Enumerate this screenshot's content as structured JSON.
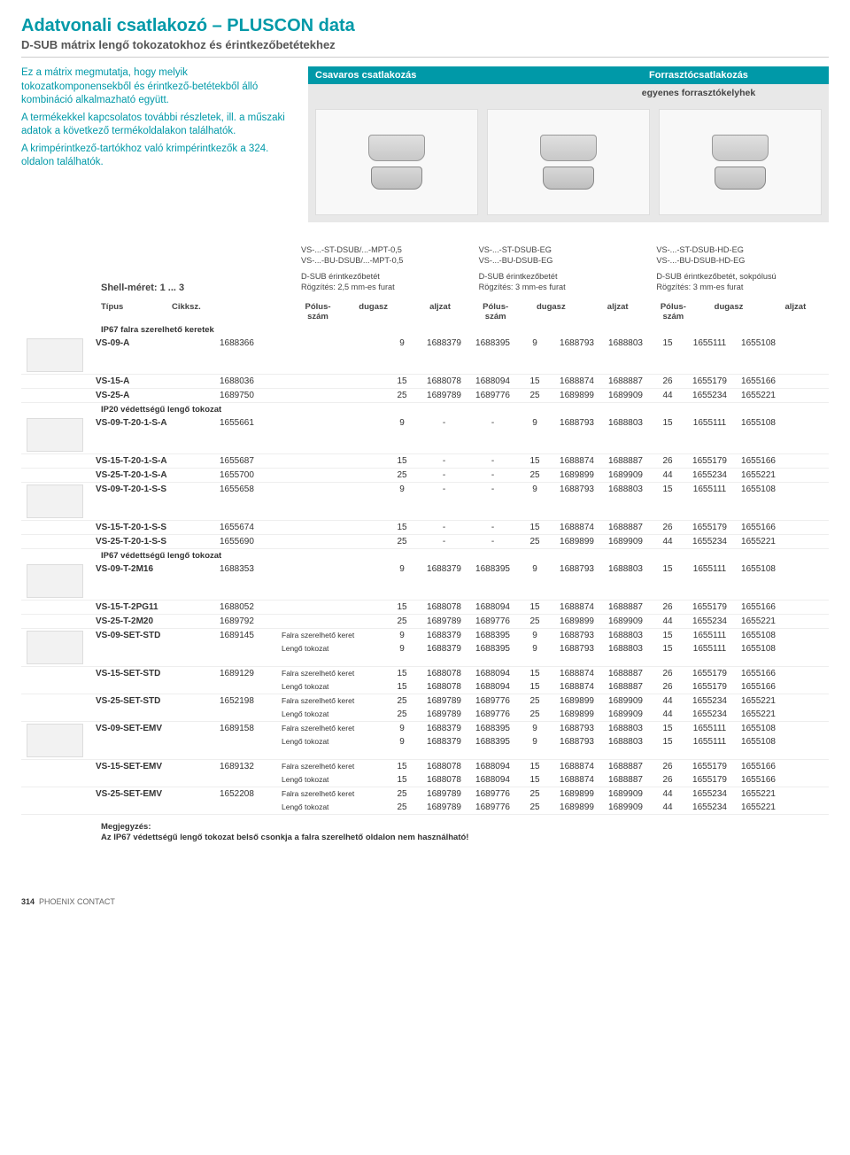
{
  "header": {
    "title": "Adatvonali csatlakozó – PLUSCON data",
    "subtitle": "D-SUB mátrix lengő tokozatokhoz és érintkezőbetétekhez"
  },
  "intro": {
    "p1": "Ez a mátrix megmutatja, hogy melyik tokozatkomponensekből és érintkező-betétekből álló kombináció alkalmazható együtt.",
    "p2": "A termékekkel kapcsolatos további részletek, ill. a műszaki adatok a következő termékoldalakon találhatók.",
    "p3": "A krimpérintkező-tartókhoz való krimpérintkezők a 324. oldalon találhatók."
  },
  "panel": {
    "left_header": "Csavaros csatlakozás",
    "right_header": "Forrasztócsatlakozás",
    "sub_right": "egyenes forrasztókelyhek"
  },
  "variants": {
    "shell_label": "Shell-méret: 1 ... 3",
    "cols": [
      {
        "c1": "VS-...-ST-DSUB/...-MPT-0,5",
        "c2": "VS-...-BU-DSUB/...-MPT-0,5",
        "d1": "D-SUB érintkezőbetét",
        "d2": "Rögzítés: 2,5 mm-es furat"
      },
      {
        "c1": "VS-...-ST-DSUB-EG",
        "c2": "VS-...-BU-DSUB-EG",
        "d1": "D-SUB érintkezőbetét",
        "d2": "Rögzítés: 3 mm-es furat"
      },
      {
        "c1": "VS-...-ST-DSUB-HD-EG",
        "c2": "VS-...-BU-DSUB-HD-EG",
        "d1": "D-SUB érintkezőbetét, sokpólusú",
        "d2": "Rögzítés: 3 mm-es furat"
      }
    ]
  },
  "colheaders": {
    "tipus": "Típus",
    "cikk": "Cikksz.",
    "pol": "Pólus-szám",
    "dugasz": "dugasz",
    "aljzat": "aljzat"
  },
  "sections": {
    "s1": "IP67 falra szerelhető keretek",
    "s2": "IP20 védettségű lengő tokozat",
    "s3": "IP67 védettségű lengő tokozat"
  },
  "extra_labels": {
    "falra": "Falra szerelhető keret",
    "lengo": "Lengő tokozat"
  },
  "rows_simple": {
    "s1": [
      {
        "tipus": "VS-09-A",
        "cikk": "1688366",
        "g1": [
          "9",
          "1688379",
          "1688395"
        ],
        "g2": [
          "9",
          "1688793",
          "1688803"
        ],
        "g3": [
          "15",
          "1655111",
          "1655108"
        ]
      },
      {
        "tipus": "VS-15-A",
        "cikk": "1688036",
        "g1": [
          "15",
          "1688078",
          "1688094"
        ],
        "g2": [
          "15",
          "1688874",
          "1688887"
        ],
        "g3": [
          "26",
          "1655179",
          "1655166"
        ]
      },
      {
        "tipus": "VS-25-A",
        "cikk": "1689750",
        "g1": [
          "25",
          "1689789",
          "1689776"
        ],
        "g2": [
          "25",
          "1689899",
          "1689909"
        ],
        "g3": [
          "44",
          "1655234",
          "1655221"
        ]
      }
    ],
    "s2": [
      {
        "tipus": "VS-09-T-20-1-S-A",
        "cikk": "1655661",
        "g1": [
          "9",
          "-",
          "-"
        ],
        "g2": [
          "9",
          "1688793",
          "1688803"
        ],
        "g3": [
          "15",
          "1655111",
          "1655108"
        ]
      },
      {
        "tipus": "VS-15-T-20-1-S-A",
        "cikk": "1655687",
        "g1": [
          "15",
          "-",
          "-"
        ],
        "g2": [
          "15",
          "1688874",
          "1688887"
        ],
        "g3": [
          "26",
          "1655179",
          "1655166"
        ]
      },
      {
        "tipus": "VS-25-T-20-1-S-A",
        "cikk": "1655700",
        "g1": [
          "25",
          "-",
          "-"
        ],
        "g2": [
          "25",
          "1689899",
          "1689909"
        ],
        "g3": [
          "44",
          "1655234",
          "1655221"
        ]
      },
      {
        "tipus": "VS-09-T-20-1-S-S",
        "cikk": "1655658",
        "g1": [
          "9",
          "-",
          "-"
        ],
        "g2": [
          "9",
          "1688793",
          "1688803"
        ],
        "g3": [
          "15",
          "1655111",
          "1655108"
        ]
      },
      {
        "tipus": "VS-15-T-20-1-S-S",
        "cikk": "1655674",
        "g1": [
          "15",
          "-",
          "-"
        ],
        "g2": [
          "15",
          "1688874",
          "1688887"
        ],
        "g3": [
          "26",
          "1655179",
          "1655166"
        ]
      },
      {
        "tipus": "VS-25-T-20-1-S-S",
        "cikk": "1655690",
        "g1": [
          "25",
          "-",
          "-"
        ],
        "g2": [
          "25",
          "1689899",
          "1689909"
        ],
        "g3": [
          "44",
          "1655234",
          "1655221"
        ]
      }
    ],
    "s3a": [
      {
        "tipus": "VS-09-T-2M16",
        "cikk": "1688353",
        "g1": [
          "9",
          "1688379",
          "1688395"
        ],
        "g2": [
          "9",
          "1688793",
          "1688803"
        ],
        "g3": [
          "15",
          "1655111",
          "1655108"
        ]
      },
      {
        "tipus": "VS-15-T-2PG11",
        "cikk": "1688052",
        "g1": [
          "15",
          "1688078",
          "1688094"
        ],
        "g2": [
          "15",
          "1688874",
          "1688887"
        ],
        "g3": [
          "26",
          "1655179",
          "1655166"
        ]
      },
      {
        "tipus": "VS-25-T-2M20",
        "cikk": "1689792",
        "g1": [
          "25",
          "1689789",
          "1689776"
        ],
        "g2": [
          "25",
          "1689899",
          "1689909"
        ],
        "g3": [
          "44",
          "1655234",
          "1655221"
        ]
      }
    ]
  },
  "rows_double": [
    {
      "tipus": "VS-09-SET-STD",
      "cikk": "1689145",
      "r1": {
        "extra": "Falra szerelhető keret",
        "g1": [
          "9",
          "1688379",
          "1688395"
        ],
        "g2": [
          "9",
          "1688793",
          "1688803"
        ],
        "g3": [
          "15",
          "1655111",
          "1655108"
        ]
      },
      "r2": {
        "extra": "Lengő tokozat",
        "g1": [
          "9",
          "1688379",
          "1688395"
        ],
        "g2": [
          "9",
          "1688793",
          "1688803"
        ],
        "g3": [
          "15",
          "1655111",
          "1655108"
        ]
      }
    },
    {
      "tipus": "VS-15-SET-STD",
      "cikk": "1689129",
      "r1": {
        "extra": "Falra szerelhető keret",
        "g1": [
          "15",
          "1688078",
          "1688094"
        ],
        "g2": [
          "15",
          "1688874",
          "1688887"
        ],
        "g3": [
          "26",
          "1655179",
          "1655166"
        ]
      },
      "r2": {
        "extra": "Lengő tokozat",
        "g1": [
          "15",
          "1688078",
          "1688094"
        ],
        "g2": [
          "15",
          "1688874",
          "1688887"
        ],
        "g3": [
          "26",
          "1655179",
          "1655166"
        ]
      }
    },
    {
      "tipus": "VS-25-SET-STD",
      "cikk": "1652198",
      "r1": {
        "extra": "Falra szerelhető keret",
        "g1": [
          "25",
          "1689789",
          "1689776"
        ],
        "g2": [
          "25",
          "1689899",
          "1689909"
        ],
        "g3": [
          "44",
          "1655234",
          "1655221"
        ]
      },
      "r2": {
        "extra": "Lengő tokozat",
        "g1": [
          "25",
          "1689789",
          "1689776"
        ],
        "g2": [
          "25",
          "1689899",
          "1689909"
        ],
        "g3": [
          "44",
          "1655234",
          "1655221"
        ]
      }
    },
    {
      "tipus": "VS-09-SET-EMV",
      "cikk": "1689158",
      "r1": {
        "extra": "Falra szerelhető keret",
        "g1": [
          "9",
          "1688379",
          "1688395"
        ],
        "g2": [
          "9",
          "1688793",
          "1688803"
        ],
        "g3": [
          "15",
          "1655111",
          "1655108"
        ]
      },
      "r2": {
        "extra": "Lengő tokozat",
        "g1": [
          "9",
          "1688379",
          "1688395"
        ],
        "g2": [
          "9",
          "1688793",
          "1688803"
        ],
        "g3": [
          "15",
          "1655111",
          "1655108"
        ]
      }
    },
    {
      "tipus": "VS-15-SET-EMV",
      "cikk": "1689132",
      "r1": {
        "extra": "Falra szerelhető keret",
        "g1": [
          "15",
          "1688078",
          "1688094"
        ],
        "g2": [
          "15",
          "1688874",
          "1688887"
        ],
        "g3": [
          "26",
          "1655179",
          "1655166"
        ]
      },
      "r2": {
        "extra": "Lengő tokozat",
        "g1": [
          "15",
          "1688078",
          "1688094"
        ],
        "g2": [
          "15",
          "1688874",
          "1688887"
        ],
        "g3": [
          "26",
          "1655179",
          "1655166"
        ]
      }
    },
    {
      "tipus": "VS-25-SET-EMV",
      "cikk": "1652208",
      "r1": {
        "extra": "Falra szerelhető keret",
        "g1": [
          "25",
          "1689789",
          "1689776"
        ],
        "g2": [
          "25",
          "1689899",
          "1689909"
        ],
        "g3": [
          "44",
          "1655234",
          "1655221"
        ]
      },
      "r2": {
        "extra": "Lengő tokozat",
        "g1": [
          "25",
          "1689789",
          "1689776"
        ],
        "g2": [
          "25",
          "1689899",
          "1689909"
        ],
        "g3": [
          "44",
          "1655234",
          "1655221"
        ]
      }
    }
  ],
  "note": {
    "label": "Megjegyzés:",
    "text": "Az IP67 védettségű lengő tokozat belső csonkja a falra szerelhető oldalon nem használható!"
  },
  "footer": {
    "page": "314",
    "brand": "PHOENIX CONTACT"
  },
  "colors": {
    "accent": "#0099a8",
    "bg_panel": "#e8e8e8",
    "text": "#333333"
  }
}
